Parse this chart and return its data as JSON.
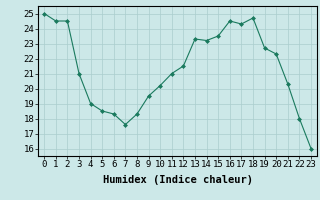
{
  "x": [
    0,
    1,
    2,
    3,
    4,
    5,
    6,
    7,
    8,
    9,
    10,
    11,
    12,
    13,
    14,
    15,
    16,
    17,
    18,
    19,
    20,
    21,
    22,
    23
  ],
  "y": [
    25.0,
    24.5,
    24.5,
    21.0,
    19.0,
    18.5,
    18.3,
    17.6,
    18.3,
    19.5,
    20.2,
    21.0,
    21.5,
    23.3,
    23.2,
    23.5,
    24.5,
    24.3,
    24.7,
    22.7,
    22.3,
    20.3,
    18.0,
    16.0
  ],
  "line_color": "#1a7a5e",
  "marker": "D",
  "marker_size": 2.0,
  "bg_color": "#cce8e8",
  "grid_color": "#aacece",
  "tick_color": "#000000",
  "xlabel": "Humidex (Indice chaleur)",
  "ylim": [
    15.5,
    25.5
  ],
  "yticks": [
    16,
    17,
    18,
    19,
    20,
    21,
    22,
    23,
    24,
    25
  ],
  "xticks": [
    0,
    1,
    2,
    3,
    4,
    5,
    6,
    7,
    8,
    9,
    10,
    11,
    12,
    13,
    14,
    15,
    16,
    17,
    18,
    19,
    20,
    21,
    22,
    23
  ],
  "xlabel_fontsize": 7.5,
  "tick_fontsize": 6.5
}
